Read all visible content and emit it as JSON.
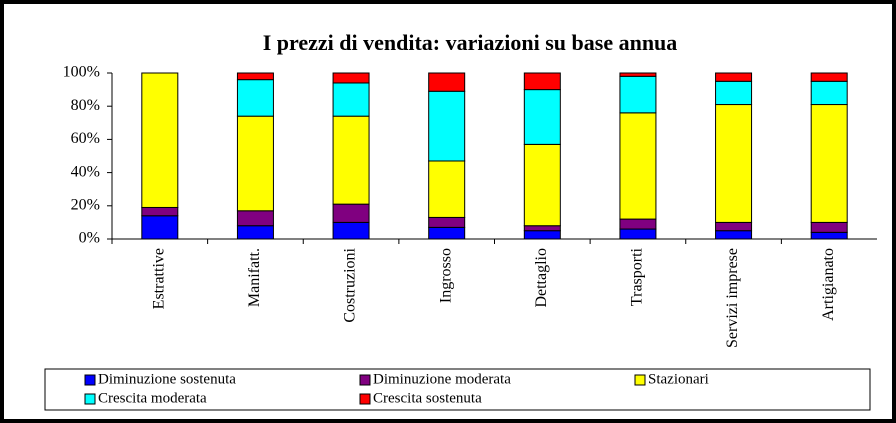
{
  "chart_data": {
    "type": "bar",
    "stacked": true,
    "title": "I prezzi di vendita: variazioni su base annua",
    "categories": [
      "Estrattive",
      "Manifatt.",
      "Costruzioni",
      "Ingrosso",
      "Dettaglio",
      "Trasporti",
      "Servizi imprese",
      "Artigianato"
    ],
    "series": [
      {
        "name": "Diminuzione sostenuta",
        "color": "#0000ff",
        "values": [
          14,
          8,
          10,
          7,
          5,
          6,
          5,
          4
        ]
      },
      {
        "name": "Diminuzione moderata",
        "color": "#800080",
        "values": [
          5,
          9,
          11,
          6,
          3,
          6,
          5,
          6
        ]
      },
      {
        "name": "Stazionari",
        "color": "#ffff00",
        "values": [
          81,
          57,
          53,
          34,
          49,
          64,
          71,
          71
        ]
      },
      {
        "name": "Crescita moderata",
        "color": "#00ffff",
        "values": [
          0,
          22,
          20,
          42,
          33,
          22,
          14,
          14
        ]
      },
      {
        "name": "Crescita sostenuta",
        "color": "#ff0000",
        "values": [
          0,
          4,
          6,
          11,
          10,
          2,
          5,
          5
        ]
      }
    ],
    "ylim": [
      0,
      100
    ],
    "yticks": [
      {
        "value": 0,
        "label": "0%"
      },
      {
        "value": 20,
        "label": "20%"
      },
      {
        "value": 40,
        "label": "40%"
      },
      {
        "value": 60,
        "label": "60%"
      },
      {
        "value": 80,
        "label": "80%"
      },
      {
        "value": 100,
        "label": "100%"
      }
    ],
    "grid": false,
    "legend": "bottom"
  }
}
